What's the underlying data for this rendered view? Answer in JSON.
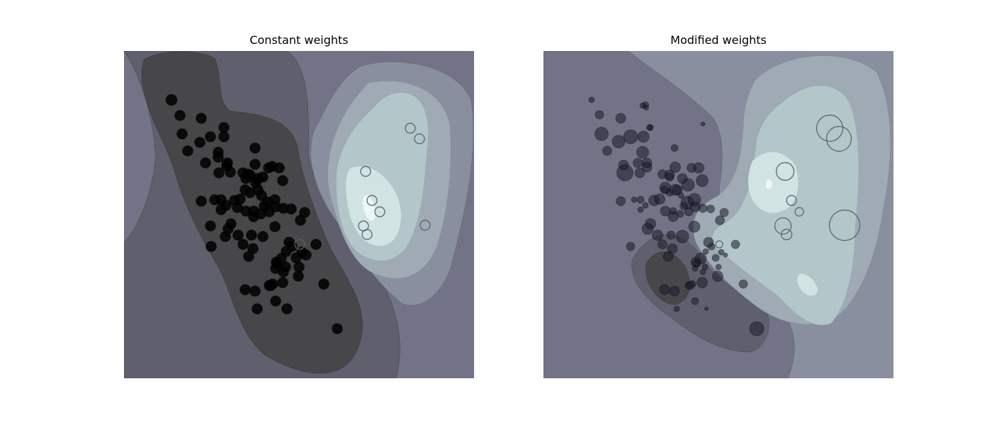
{
  "chart_data": [
    {
      "type": "scatter",
      "title": "Constant weights",
      "colors": {
        "level0": "#474649",
        "level1": "#5f5f6d",
        "level2": "#727386",
        "level3": "#8a8fa0",
        "level4": "#9faab4",
        "level5": "#b3c6c9",
        "level6": "#d1e3e3",
        "level7": "#eef6f6",
        "positive_edge": "#555f66",
        "negative_fill": "#000000"
      },
      "negative_points": [
        [
          67,
          69,
          16
        ],
        [
          79,
          91,
          15
        ],
        [
          109,
          95,
          15
        ],
        [
          141,
          108,
          15
        ],
        [
          82,
          117,
          15
        ],
        [
          122,
          121,
          15
        ],
        [
          107,
          129,
          15
        ],
        [
          90,
          141,
          15
        ],
        [
          141,
          121,
          15
        ],
        [
          133,
          143,
          15
        ],
        [
          115,
          158,
          15
        ],
        [
          146,
          158,
          15
        ],
        [
          185,
          137,
          15
        ],
        [
          133,
          150,
          15
        ],
        [
          145,
          162,
          15
        ],
        [
          185,
          160,
          15
        ],
        [
          134,
          172,
          15
        ],
        [
          150,
          171,
          15
        ],
        [
          175,
          174,
          15
        ],
        [
          189,
          180,
          15
        ],
        [
          209,
          163,
          15
        ],
        [
          219,
          165,
          15
        ],
        [
          168,
          172,
          15
        ],
        [
          178,
          175,
          15
        ],
        [
          172,
          180,
          15
        ],
        [
          186,
          186,
          15
        ],
        [
          196,
          178,
          15
        ],
        [
          204,
          165,
          15
        ],
        [
          224,
          183,
          15
        ],
        [
          171,
          196,
          15
        ],
        [
          189,
          196,
          15
        ],
        [
          156,
          211,
          15
        ],
        [
          164,
          209,
          15
        ],
        [
          178,
          200,
          15
        ],
        [
          194,
          204,
          15
        ],
        [
          203,
          213,
          15
        ],
        [
          213,
          210,
          15
        ],
        [
          160,
          221,
          15
        ],
        [
          172,
          226,
          15
        ],
        [
          183,
          226,
          15
        ],
        [
          198,
          219,
          15
        ],
        [
          183,
          234,
          15
        ],
        [
          193,
          230,
          15
        ],
        [
          205,
          227,
          15
        ],
        [
          214,
          220,
          15
        ],
        [
          225,
          222,
          15
        ],
        [
          236,
          223,
          15
        ],
        [
          249,
          239,
          15
        ],
        [
          255,
          228,
          15
        ],
        [
          213,
          248,
          15
        ],
        [
          196,
          262,
          15
        ],
        [
          180,
          260,
          15
        ],
        [
          161,
          260,
          15
        ],
        [
          151,
          244,
          15
        ],
        [
          147,
          251,
          15
        ],
        [
          122,
          247,
          15
        ],
        [
          143,
          262,
          15
        ],
        [
          137,
          224,
          15
        ],
        [
          144,
          218,
          15
        ],
        [
          137,
          210,
          15
        ],
        [
          128,
          210,
          15
        ],
        [
          109,
          212,
          15
        ],
        [
          182,
          279,
          15
        ],
        [
          168,
          273,
          15
        ],
        [
          176,
          290,
          15
        ],
        [
          215,
          298,
          15
        ],
        [
          222,
          293,
          15
        ],
        [
          229,
          283,
          15
        ],
        [
          237,
          276,
          15
        ],
        [
          251,
          284,
          15
        ],
        [
          243,
          292,
          15
        ],
        [
          216,
          300,
          15
        ],
        [
          214,
          307,
          15
        ],
        [
          228,
          305,
          15
        ],
        [
          225,
          312,
          15
        ],
        [
          247,
          305,
          15
        ],
        [
          257,
          288,
          15
        ],
        [
          271,
          273,
          15
        ],
        [
          233,
          270,
          15
        ],
        [
          246,
          318,
          15
        ],
        [
          224,
          327,
          15
        ],
        [
          205,
          331,
          15
        ],
        [
          210,
          329,
          15
        ],
        [
          207,
          331,
          15
        ],
        [
          214,
          353,
          15
        ],
        [
          185,
          339,
          15
        ],
        [
          171,
          337,
          15
        ],
        [
          188,
          364,
          15
        ],
        [
          230,
          364,
          15
        ],
        [
          282,
          329,
          15
        ],
        [
          301,
          392,
          15
        ],
        [
          123,
          276,
          15
        ]
      ],
      "positive_points": [
        [
          404,
          109,
          14
        ],
        [
          417,
          124,
          14
        ],
        [
          341,
          170,
          14
        ],
        [
          350,
          211,
          14
        ],
        [
          361,
          227,
          14
        ],
        [
          338,
          247,
          14
        ],
        [
          343,
          259,
          14
        ],
        [
          425,
          246,
          14
        ],
        [
          248,
          273,
          14
        ]
      ]
    },
    {
      "type": "scatter",
      "title": "Modified weights",
      "negative_points": [
        [
          68,
          69,
          8
        ],
        [
          79,
          90,
          12
        ],
        [
          109,
          95,
          14
        ],
        [
          140,
          77,
          8
        ],
        [
          144,
          76,
          9
        ],
        [
          145,
          80,
          7
        ],
        [
          150,
          108,
          9
        ],
        [
          225,
          103,
          6
        ],
        [
          82,
          117,
          19
        ],
        [
          106,
          128,
          18
        ],
        [
          123,
          121,
          20
        ],
        [
          141,
          121,
          16
        ],
        [
          151,
          108,
          8
        ],
        [
          90,
          141,
          13
        ],
        [
          140,
          143,
          17
        ],
        [
          133,
          158,
          13
        ],
        [
          113,
          161,
          14
        ],
        [
          146,
          158,
          14
        ],
        [
          185,
          137,
          10
        ],
        [
          115,
          172,
          23
        ],
        [
          136,
          172,
          14
        ],
        [
          146,
          164,
          14
        ],
        [
          168,
          174,
          13
        ],
        [
          186,
          164,
          15
        ],
        [
          209,
          165,
          13
        ],
        [
          219,
          165,
          15
        ],
        [
          178,
          175,
          14
        ],
        [
          196,
          180,
          14
        ],
        [
          178,
          178,
          12
        ],
        [
          172,
          193,
          16
        ],
        [
          204,
          189,
          18
        ],
        [
          186,
          196,
          16
        ],
        [
          224,
          183,
          17
        ],
        [
          171,
          196,
          11
        ],
        [
          189,
          196,
          14
        ],
        [
          156,
          211,
          15
        ],
        [
          164,
          209,
          15
        ],
        [
          178,
          200,
          10
        ],
        [
          194,
          204,
          8
        ],
        [
          203,
          214,
          18
        ],
        [
          213,
          210,
          18
        ],
        [
          172,
          226,
          14
        ],
        [
          183,
          226,
          10
        ],
        [
          198,
          219,
          11
        ],
        [
          183,
          234,
          14
        ],
        [
          193,
          230,
          10
        ],
        [
          205,
          227,
          12
        ],
        [
          214,
          220,
          14
        ],
        [
          225,
          222,
          12
        ],
        [
          236,
          223,
          11
        ],
        [
          249,
          239,
          13
        ],
        [
          255,
          228,
          12
        ],
        [
          213,
          248,
          16
        ],
        [
          196,
          262,
          18
        ],
        [
          180,
          260,
          12
        ],
        [
          161,
          260,
          15
        ],
        [
          151,
          244,
          15
        ],
        [
          147,
          251,
          16
        ],
        [
          123,
          276,
          12
        ],
        [
          137,
          224,
          8
        ],
        [
          144,
          218,
          8
        ],
        [
          137,
          210,
          10
        ],
        [
          128,
          210,
          8
        ],
        [
          109,
          212,
          13
        ],
        [
          182,
          279,
          14
        ],
        [
          168,
          273,
          13
        ],
        [
          176,
          290,
          14
        ],
        [
          215,
          298,
          14
        ],
        [
          222,
          293,
          16
        ],
        [
          229,
          283,
          8
        ],
        [
          237,
          276,
          10
        ],
        [
          251,
          284,
          8
        ],
        [
          243,
          292,
          10
        ],
        [
          216,
          300,
          11
        ],
        [
          214,
          307,
          8
        ],
        [
          228,
          305,
          8
        ],
        [
          225,
          312,
          8
        ],
        [
          247,
          305,
          8
        ],
        [
          257,
          288,
          6
        ],
        [
          271,
          273,
          12
        ],
        [
          233,
          270,
          14
        ],
        [
          246,
          318,
          15
        ],
        [
          224,
          327,
          15
        ],
        [
          205,
          331,
          10
        ],
        [
          210,
          329,
          10
        ],
        [
          207,
          331,
          12
        ],
        [
          214,
          353,
          10
        ],
        [
          185,
          339,
          14
        ],
        [
          171,
          337,
          14
        ],
        [
          188,
          364,
          8
        ],
        [
          230,
          364,
          5
        ],
        [
          282,
          329,
          12
        ],
        [
          301,
          392,
          20
        ]
      ],
      "positive_points": [
        [
          404,
          109,
          37
        ],
        [
          417,
          124,
          35
        ],
        [
          341,
          170,
          25
        ],
        [
          350,
          211,
          14
        ],
        [
          361,
          227,
          12
        ],
        [
          338,
          247,
          23
        ],
        [
          343,
          259,
          15
        ],
        [
          425,
          246,
          43
        ],
        [
          248,
          273,
          10
        ]
      ]
    }
  ]
}
